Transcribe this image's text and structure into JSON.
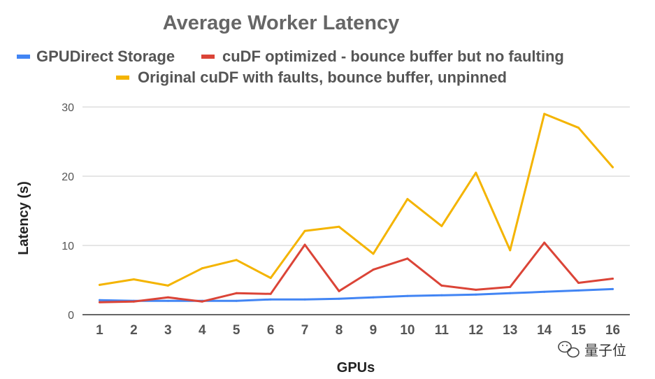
{
  "chart_data": {
    "type": "line",
    "title": "Average Worker Latency",
    "xlabel": "GPUs",
    "ylabel": "Latency (s)",
    "ylim": [
      0,
      30
    ],
    "yticks": [
      0,
      10,
      20,
      30
    ],
    "categories": [
      "1",
      "2",
      "3",
      "4",
      "5",
      "6",
      "7",
      "8",
      "9",
      "10",
      "11",
      "12",
      "13",
      "14",
      "15",
      "16"
    ],
    "grid": true,
    "legend_position": "top",
    "series": [
      {
        "name": "GPUDirect Storage",
        "color": "#4285f4",
        "values": [
          2.1,
          2.0,
          2.0,
          2.0,
          2.0,
          2.2,
          2.2,
          2.3,
          2.5,
          2.7,
          2.8,
          2.9,
          3.1,
          3.3,
          3.5,
          3.7
        ]
      },
      {
        "name": "cuDF optimized - bounce buffer but no faulting",
        "color": "#db4437",
        "values": [
          1.8,
          1.9,
          2.5,
          1.9,
          3.1,
          3.0,
          10.1,
          3.4,
          6.5,
          8.1,
          4.2,
          3.6,
          4.0,
          10.4,
          4.6,
          5.2
        ]
      },
      {
        "name": "Original cuDF with faults, bounce buffer, unpinned",
        "color": "#f4b400",
        "values": [
          4.3,
          5.1,
          4.2,
          6.7,
          7.9,
          5.3,
          12.1,
          12.7,
          8.8,
          16.7,
          12.8,
          20.5,
          9.3,
          29.0,
          27.0,
          21.3
        ]
      }
    ]
  },
  "watermark": {
    "text": "量子位",
    "icon": "wechat-icon"
  }
}
